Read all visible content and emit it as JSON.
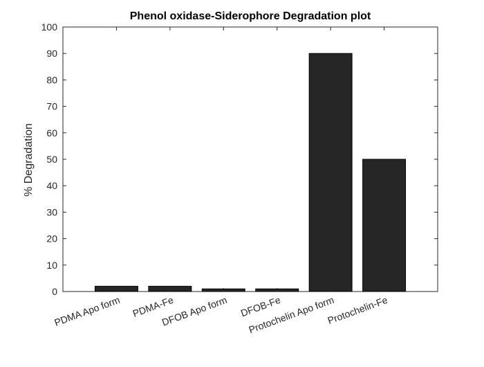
{
  "chart_data": {
    "type": "bar",
    "title": "Phenol oxidase-Siderophore Degradation plot",
    "xlabel": "",
    "ylabel": "% Degradation",
    "categories": [
      "PDMA Apo form",
      "PDMA-Fe",
      "DFOB Apo form",
      "DFOB-Fe",
      "Protochelin Apo form",
      "Protochelin-Fe"
    ],
    "values": [
      2,
      2,
      1,
      1,
      90,
      50
    ],
    "ylim": [
      0,
      100
    ],
    "yticks": [
      "0",
      "10",
      "20",
      "30",
      "40",
      "50",
      "60",
      "70",
      "80",
      "90",
      "100"
    ],
    "grid": false,
    "legend": "none",
    "bar_color": "#262626"
  }
}
